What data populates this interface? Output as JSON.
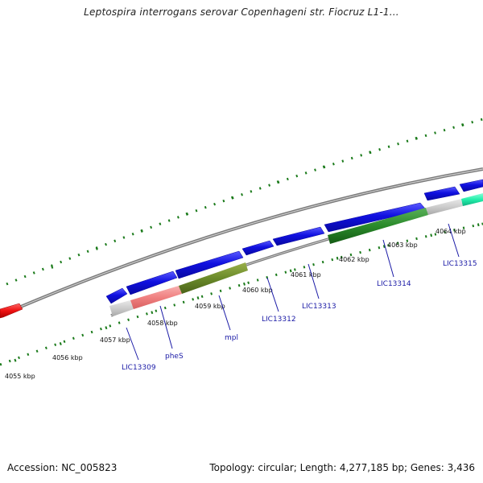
{
  "title": "Leptospira interrogans serovar Copenhageni str. Fiocruz L1-1...",
  "footer": {
    "accession": "Accession: NC_005823",
    "summary": "Topology: circular; Length: 4,277,185 bp; Genes: 3,436"
  },
  "kbp_labels": [
    "4055 kbp",
    "4056 kbp",
    "4057 kbp",
    "4058 kbp",
    "4059 kbp",
    "4060 kbp",
    "4061 kbp",
    "4062 kbp",
    "4063 kbp",
    "4064 kbp"
  ],
  "gene_labels": [
    "LIC13309",
    "pheS",
    "mpl",
    "LIC13312",
    "LIC13313",
    "LIC13314",
    "LIC13315"
  ],
  "colors": {
    "forward_cds": "#1010e0",
    "reverse_feature_red": "#ee1111",
    "backbone": "#888888",
    "tick": "#1a7a1a",
    "gene_label": "#1a1aa6",
    "dark_green": "#2a8a2a",
    "olive": "#6a8a2a",
    "pink": "#f08080",
    "light_gray": "#cccccc",
    "aqua": "#22eeaa"
  }
}
